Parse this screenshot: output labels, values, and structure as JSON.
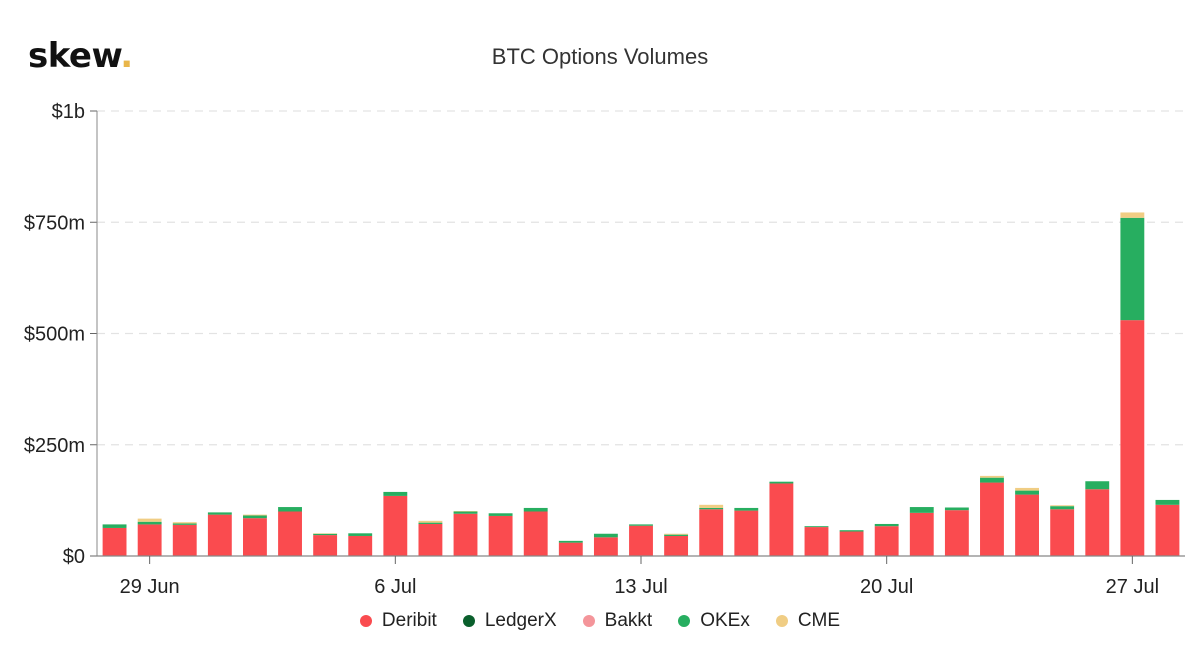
{
  "brand": {
    "name": "skew",
    "dot": "."
  },
  "colors": {
    "Deribit": "#fa4b4f",
    "LedgerX": "#0a5f2c",
    "Bakkt": "#f4959a",
    "OKEx": "#27ae60",
    "CME": "#f0cd84"
  },
  "chart_data": {
    "type": "bar",
    "stacked": true,
    "title": "BTC Options Volumes",
    "xlabel": "",
    "ylabel": "",
    "ylim": [
      0,
      1000000000
    ],
    "yticks": [
      0,
      250000000,
      500000000,
      750000000,
      1000000000
    ],
    "ytick_labels": [
      "$0",
      "$250m",
      "$500m",
      "$750m",
      "$1b"
    ],
    "grid": true,
    "legend_position": "bottom",
    "categories": [
      "2020-06-28",
      "2020-06-29",
      "2020-06-30",
      "2020-07-01",
      "2020-07-02",
      "2020-07-03",
      "2020-07-04",
      "2020-07-05",
      "2020-07-06",
      "2020-07-07",
      "2020-07-08",
      "2020-07-09",
      "2020-07-10",
      "2020-07-11",
      "2020-07-12",
      "2020-07-13",
      "2020-07-14",
      "2020-07-15",
      "2020-07-16",
      "2020-07-17",
      "2020-07-18",
      "2020-07-19",
      "2020-07-20",
      "2020-07-21",
      "2020-07-22",
      "2020-07-23",
      "2020-07-24",
      "2020-07-25",
      "2020-07-26",
      "2020-07-27",
      "2020-07-28"
    ],
    "xticks": [
      {
        "index": 1,
        "label": "29 Jun"
      },
      {
        "index": 8,
        "label": "6 Jul"
      },
      {
        "index": 15,
        "label": "13 Jul"
      },
      {
        "index": 22,
        "label": "20 Jul"
      },
      {
        "index": 29,
        "label": "27 Jul"
      }
    ],
    "series": [
      {
        "name": "Deribit",
        "values": [
          63,
          71,
          70,
          93,
          85,
          100,
          47,
          45,
          135,
          72,
          95,
          90,
          100,
          30,
          42,
          68,
          45,
          105,
          102,
          163,
          65,
          55,
          67,
          97,
          103,
          165,
          138,
          105,
          150,
          530,
          115
        ]
      },
      {
        "name": "LedgerX",
        "values": [
          0,
          0,
          0,
          0,
          0,
          0,
          0,
          0,
          0,
          0,
          0,
          0,
          0,
          0,
          0,
          0,
          0,
          0,
          0,
          0,
          0,
          0,
          0,
          0,
          0,
          0,
          0,
          0,
          0,
          0,
          0
        ]
      },
      {
        "name": "Bakkt",
        "values": [
          0,
          0,
          0,
          0,
          0,
          0,
          0,
          0,
          0,
          0,
          0,
          0,
          0,
          0,
          0,
          0,
          0,
          0,
          0,
          0,
          0,
          0,
          0,
          0,
          0,
          0,
          0,
          0,
          0,
          0,
          0
        ]
      },
      {
        "name": "OKEx",
        "values": [
          8,
          6,
          3,
          5,
          6,
          10,
          3,
          6,
          9,
          3,
          5,
          6,
          8,
          4,
          8,
          3,
          3,
          3,
          6,
          4,
          2,
          3,
          5,
          13,
          6,
          11,
          9,
          7,
          18,
          230,
          11
        ]
      },
      {
        "name": "CME",
        "values": [
          0,
          7,
          3,
          0,
          2,
          0,
          1,
          0,
          0,
          4,
          1,
          0,
          0,
          0,
          0,
          0,
          2,
          7,
          0,
          0,
          0,
          0,
          0,
          0,
          0,
          4,
          6,
          2,
          0,
          12,
          0
        ]
      }
    ],
    "value_unit": "USD millions"
  }
}
